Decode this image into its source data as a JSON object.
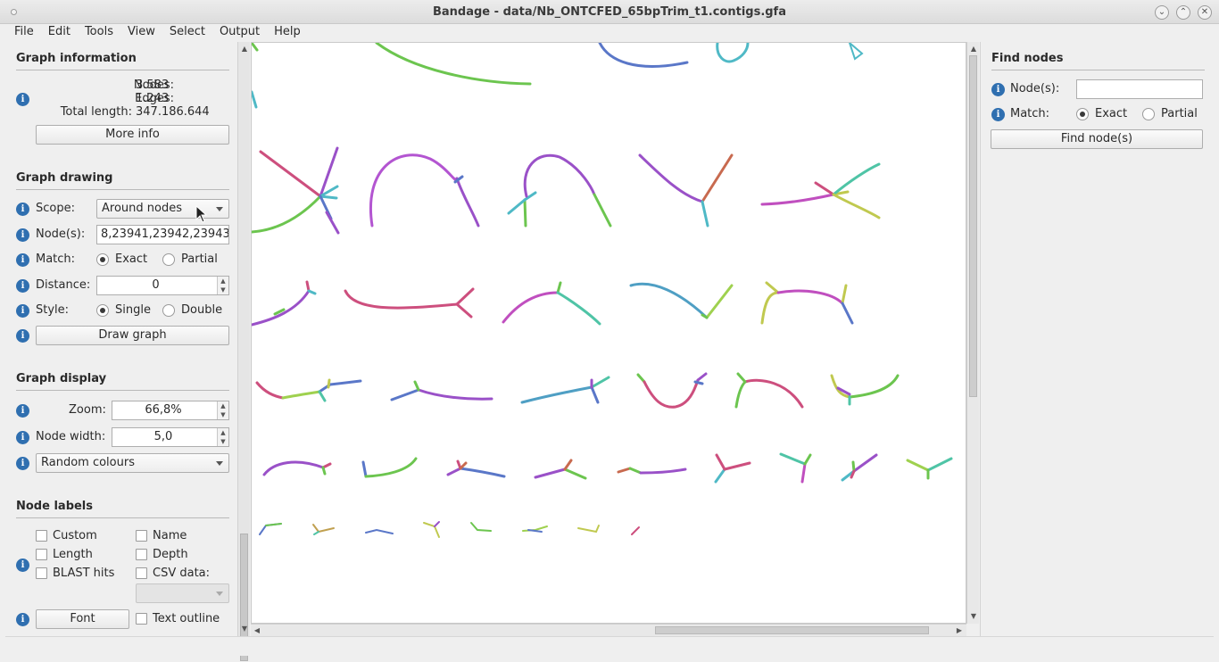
{
  "window": {
    "title": "Bandage - data/Nb_ONTCFED_65bpTrim_t1.contigs.gfa"
  },
  "menu": [
    "File",
    "Edit",
    "Tools",
    "View",
    "Select",
    "Output",
    "Help"
  ],
  "graph_info": {
    "heading": "Graph information",
    "nodes_label": "Nodes:",
    "nodes_value": "3.583",
    "edges_label": "Edges:",
    "edges_value": "1.243",
    "length_label": "Total length:",
    "length_value": "347.186.644",
    "more_info": "More info"
  },
  "graph_drawing": {
    "heading": "Graph drawing",
    "scope_label": "Scope:",
    "scope_value": "Around nodes",
    "nodes_label": "Node(s):",
    "nodes_value": "8,23941,23942,23943",
    "match_label": "Match:",
    "match_exact": "Exact",
    "match_partial": "Partial",
    "distance_label": "Distance:",
    "distance_value": "0",
    "style_label": "Style:",
    "style_single": "Single",
    "style_double": "Double",
    "draw_button": "Draw graph"
  },
  "graph_display": {
    "heading": "Graph display",
    "zoom_label": "Zoom:",
    "zoom_value": "66,8%",
    "width_label": "Node width:",
    "width_value": "5,0",
    "colour_value": "Random colours"
  },
  "node_labels": {
    "heading": "Node labels",
    "custom": "Custom",
    "name": "Name",
    "length": "Length",
    "depth": "Depth",
    "blast": "BLAST hits",
    "csv": "CSV data:",
    "font_button": "Font",
    "outline": "Text outline"
  },
  "find_nodes": {
    "heading": "Find nodes",
    "nodes_label": "Node(s):",
    "nodes_value": "",
    "match_label": "Match:",
    "match_exact": "Exact",
    "match_partial": "Partial",
    "find_button": "Find node(s)"
  },
  "colors": {
    "info_icon": "#2f6fb0",
    "canvas": "#ffffff"
  }
}
